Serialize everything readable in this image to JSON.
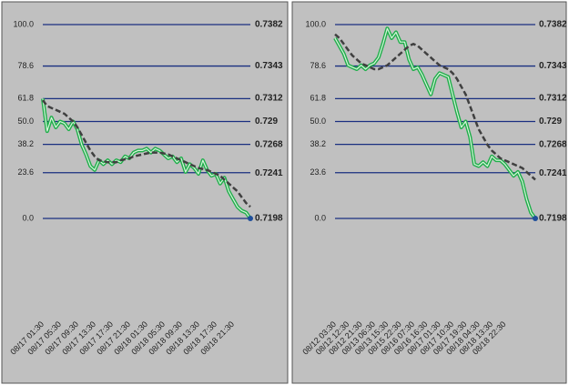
{
  "chart_data": [
    {
      "type": "line",
      "categories": [
        "08/17 01:30",
        null,
        null,
        null,
        "08/17 05:30",
        null,
        null,
        null,
        "08/17 09:30",
        null,
        null,
        null,
        "08/17 13:30",
        null,
        null,
        null,
        "08/17 17:30",
        null,
        null,
        null,
        "08/17 21:30",
        null,
        null,
        null,
        "08/18 01:30",
        null,
        null,
        null,
        "08/18 05:30",
        null,
        null,
        null,
        "08/18 09:30",
        null,
        null,
        null,
        "08/18 13:30",
        null,
        null,
        null,
        "08/18 17:30",
        null,
        null,
        null,
        "08/18 21:30",
        null,
        null,
        null,
        null
      ],
      "series": [
        {
          "color": "#1fae4a",
          "style": "solid",
          "values": [
            61.8,
            45,
            52,
            47,
            50,
            49,
            46,
            50,
            46,
            38,
            33,
            27,
            25,
            30,
            28,
            30,
            28,
            30,
            29,
            32,
            31,
            34,
            35,
            35,
            36,
            34,
            36,
            35,
            33,
            31,
            32,
            29,
            31,
            24,
            28,
            26,
            23,
            30,
            25,
            22,
            23,
            18,
            21,
            14,
            10,
            6,
            4,
            3,
            0
          ]
        },
        {
          "color": "#404040",
          "style": "dashed",
          "values": [
            61,
            58,
            57,
            56,
            55,
            54,
            52,
            50,
            47,
            43,
            39,
            35,
            32,
            30,
            29.5,
            29,
            29,
            29,
            30,
            30.5,
            31,
            32,
            32.5,
            33,
            33.5,
            34,
            34,
            34,
            33.5,
            33,
            32,
            31,
            30,
            29,
            28,
            27,
            26,
            25.5,
            25,
            24,
            23,
            22,
            20,
            18,
            16,
            14,
            11,
            8,
            6
          ]
        }
      ],
      "last_point_color": "#1f4e9a",
      "ylim": [
        0,
        100
      ],
      "yticks": [
        {
          "value": 100,
          "label": "100.0"
        },
        78.6,
        61.8,
        {
          "value": 50,
          "label": "50.0"
        },
        38.2,
        23.6,
        {
          "value": 0,
          "label": "0.0"
        }
      ],
      "y2lim": [
        0.7198,
        0.7382
      ],
      "y2ticks": [
        0.7382,
        0.7343,
        0.7312,
        0.729,
        0.7268,
        0.7241,
        0.7198
      ],
      "grid": true,
      "grid_color": "#1a2f80"
    },
    {
      "type": "line",
      "categories": [
        "08/12 03:30",
        null,
        null,
        "08/12 12:30",
        null,
        null,
        "08/12 21:30",
        null,
        null,
        "08/13 06:30",
        null,
        null,
        "08/13 15:30",
        null,
        null,
        "08/15 22:30",
        null,
        null,
        "08/16 07:30",
        null,
        null,
        "08/16 16:30",
        null,
        null,
        "08/17 01:30",
        null,
        null,
        "08/17 10:30",
        null,
        null,
        "08/17 19:30",
        null,
        null,
        "08/18 04:30",
        null,
        null,
        "08/18 13:30",
        null,
        null,
        "08/18 22:30",
        null,
        null,
        null,
        null,
        null,
        null,
        null
      ],
      "series": [
        {
          "color": "#1fae4a",
          "style": "solid",
          "values": [
            93,
            89,
            85,
            79,
            78,
            77,
            79,
            77,
            79,
            80,
            83,
            90,
            98,
            93,
            96,
            91,
            91,
            82,
            77,
            78,
            74,
            69,
            64,
            72,
            75,
            74,
            73,
            64,
            55,
            47,
            50,
            42,
            28,
            27,
            29,
            27,
            32,
            30,
            30,
            28,
            25,
            22,
            24,
            19,
            10,
            3,
            0
          ]
        },
        {
          "color": "#404040",
          "style": "dashed",
          "values": [
            95,
            93,
            90,
            87,
            84,
            82,
            80,
            79,
            78,
            77,
            77,
            78,
            79,
            81,
            83,
            85,
            87,
            89,
            90,
            89,
            87,
            85,
            83,
            81,
            79,
            78,
            77,
            75,
            72,
            68,
            64,
            58,
            52,
            46,
            42,
            38,
            35,
            33,
            31,
            30,
            29,
            28,
            27,
            26,
            24,
            22,
            20
          ]
        }
      ],
      "last_point_color": "#1f4e9a",
      "ylim": [
        0,
        100
      ],
      "yticks": [
        {
          "value": 100,
          "label": "100.0"
        },
        78.6,
        61.8,
        {
          "value": 50,
          "label": "50.0"
        },
        38.2,
        23.6,
        {
          "value": 0,
          "label": "0.0"
        }
      ],
      "y2lim": [
        0.7198,
        0.7382
      ],
      "y2ticks": [
        0.7382,
        0.7343,
        0.7312,
        0.729,
        0.7268,
        0.7241,
        0.7198
      ],
      "grid": true,
      "grid_color": "#1a2f80"
    }
  ]
}
